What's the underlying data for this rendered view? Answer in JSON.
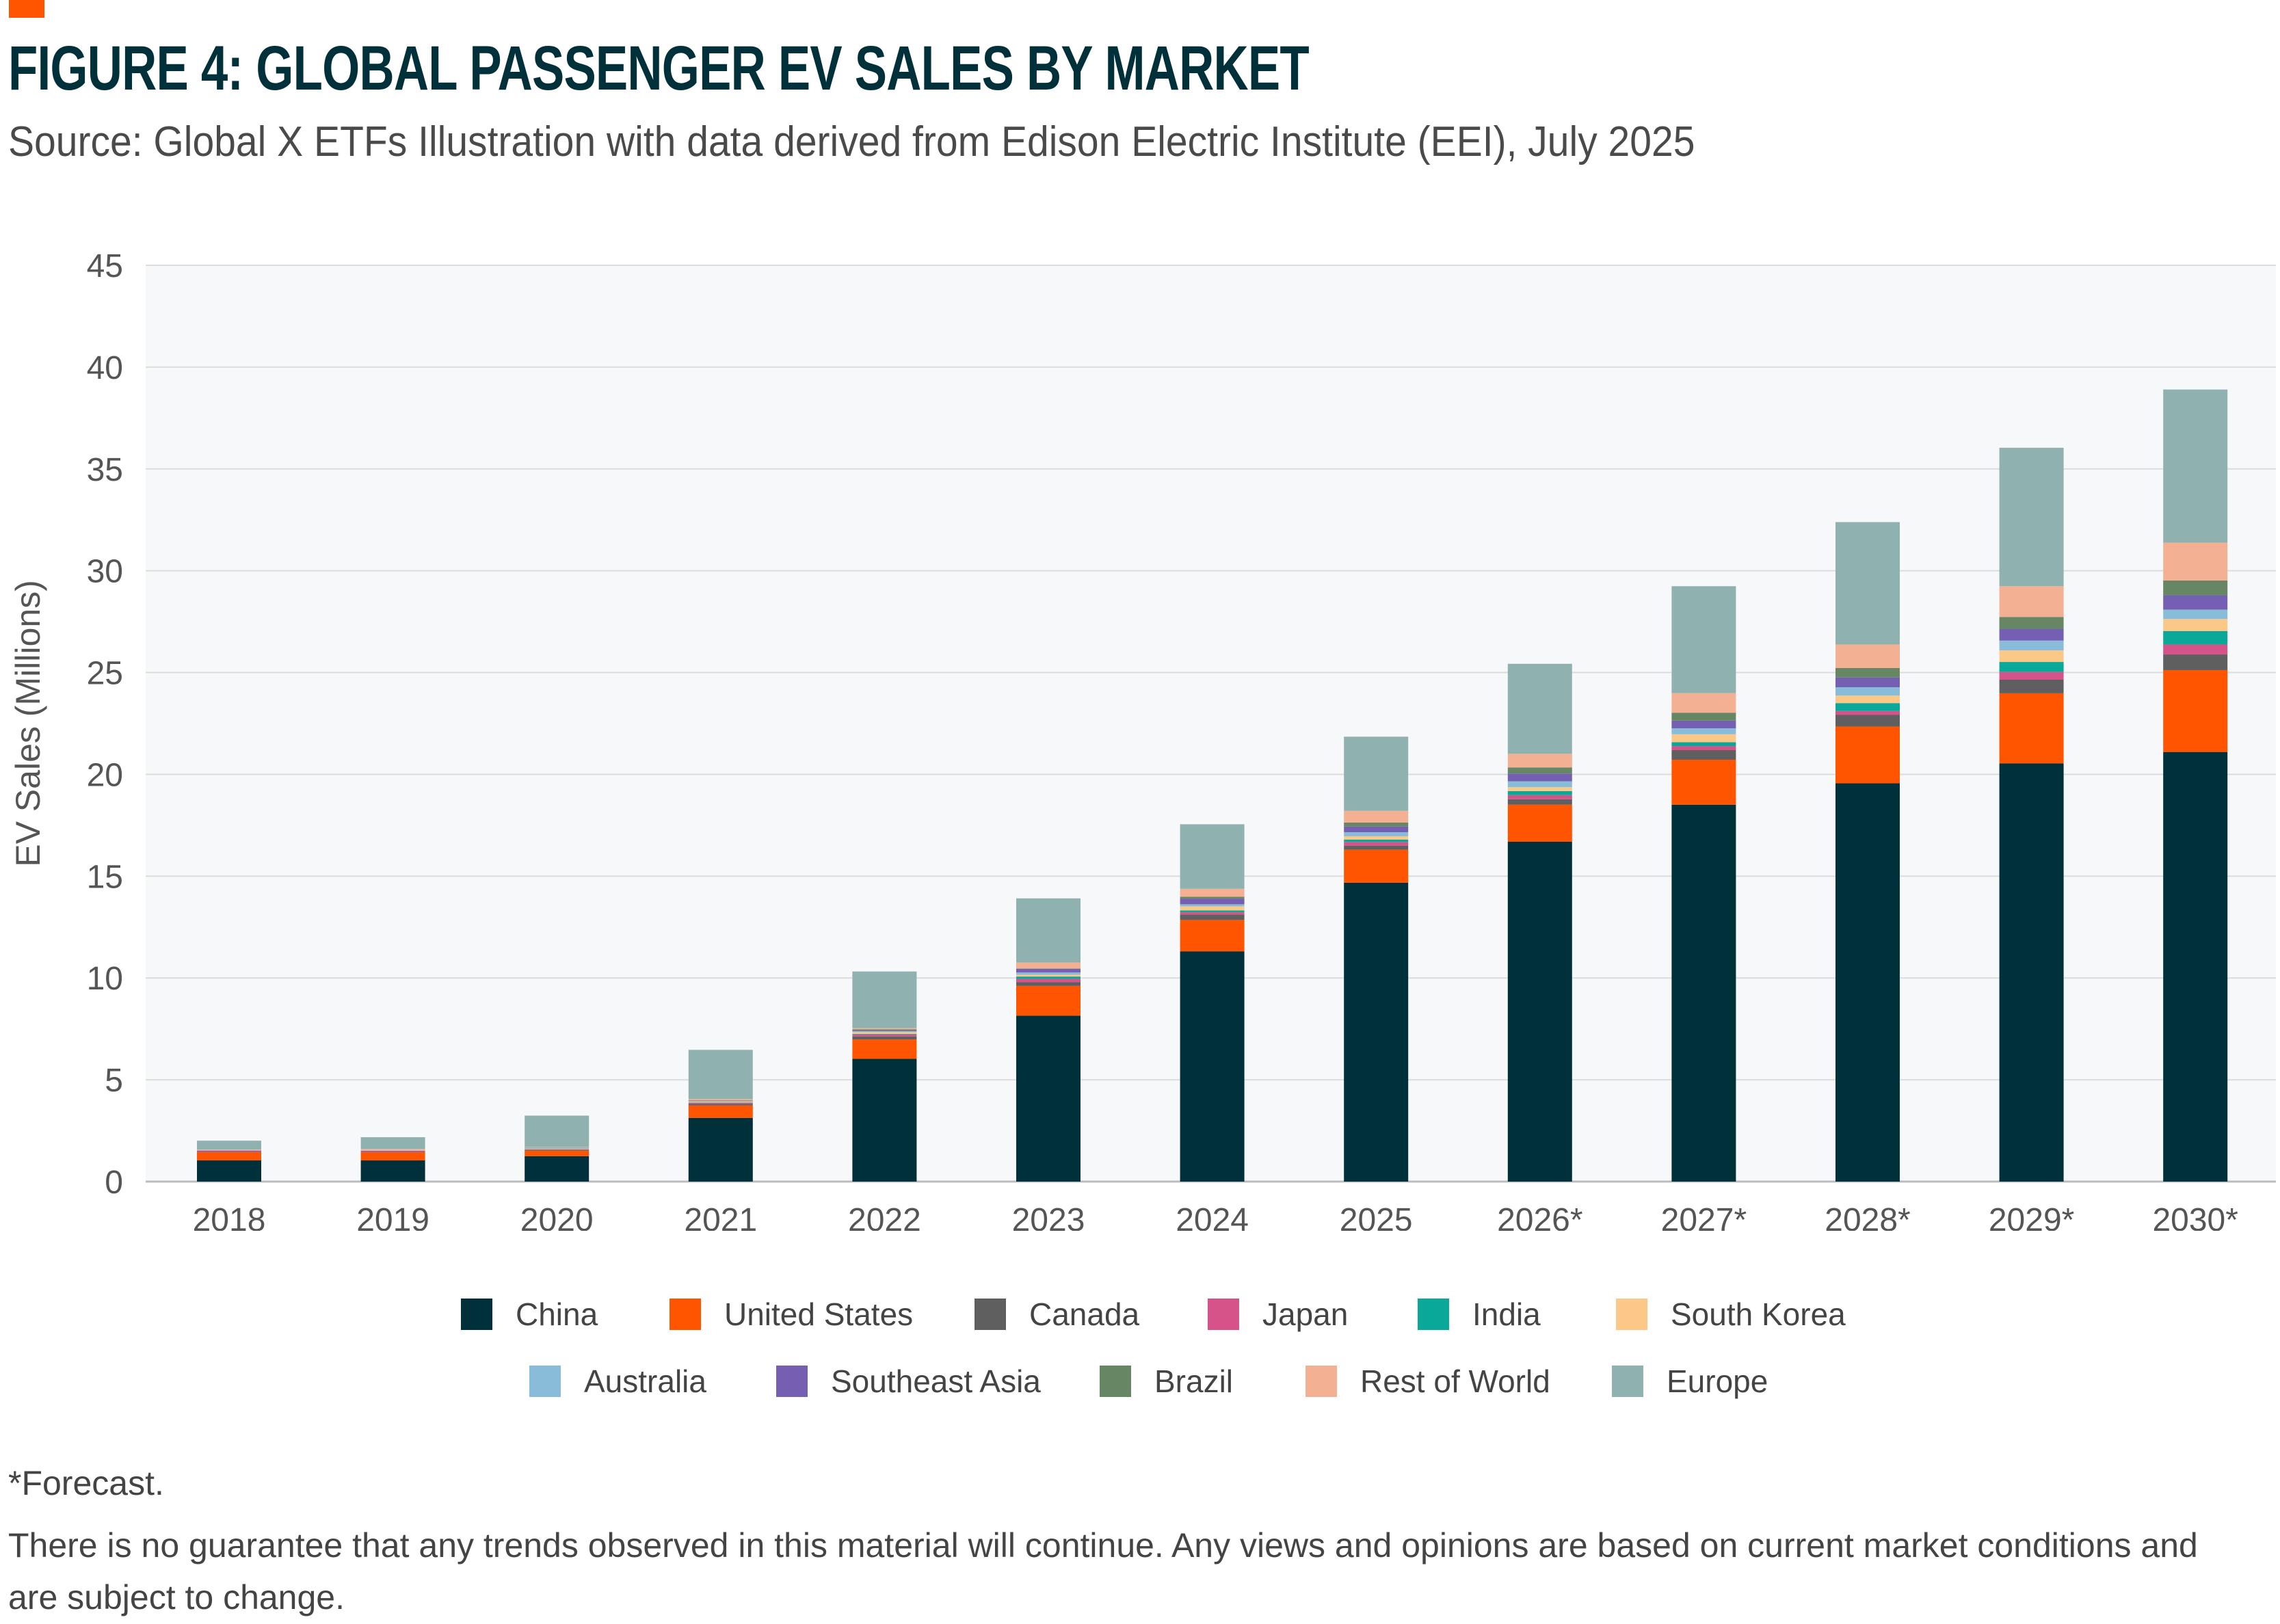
{
  "header": {
    "title": "FIGURE 4: GLOBAL PASSENGER EV SALES BY MARKET",
    "subtitle": "Source: Global X ETFs Illustration with data derived from Edison Electric Institute (EEI), July 2025",
    "accent_color": "#ff5400"
  },
  "chart_data": {
    "type": "bar",
    "stacked": true,
    "title": "",
    "xlabel": "",
    "ylabel": "EV Sales (Millions)",
    "ylim": [
      0,
      45
    ],
    "yticks": [
      0,
      5,
      10,
      15,
      20,
      25,
      30,
      35,
      40,
      45
    ],
    "grid": true,
    "legend_position": "bottom",
    "categories": [
      "2018",
      "2019",
      "2020",
      "2021",
      "2022",
      "2023",
      "2024",
      "2025",
      "2026*",
      "2027*",
      "2028*",
      "2029*",
      "2030*"
    ],
    "series": [
      {
        "name": "China",
        "color": "#00303a",
        "values": [
          1.04,
          1.04,
          1.25,
          3.13,
          6.03,
          8.15,
          11.31,
          14.68,
          16.69,
          18.51,
          19.56,
          20.54,
          21.1
        ]
      },
      {
        "name": "United States",
        "color": "#ff5400",
        "values": [
          0.4,
          0.4,
          0.27,
          0.61,
          0.95,
          1.46,
          1.54,
          1.62,
          1.82,
          2.21,
          2.79,
          3.44,
          4.02
        ]
      },
      {
        "name": "Canada",
        "color": "#5f5f5f",
        "values": [
          0.02,
          0.02,
          0.05,
          0.07,
          0.15,
          0.18,
          0.27,
          0.2,
          0.27,
          0.47,
          0.57,
          0.67,
          0.77
        ]
      },
      {
        "name": "Japan",
        "color": "#d6538a",
        "values": [
          0.07,
          0.06,
          0.02,
          0.06,
          0.1,
          0.17,
          0.11,
          0.18,
          0.2,
          0.2,
          0.19,
          0.38,
          0.49
        ]
      },
      {
        "name": "India",
        "color": "#0aa898",
        "values": [
          0.0,
          0.0,
          0.0,
          0.01,
          0.03,
          0.11,
          0.09,
          0.12,
          0.2,
          0.19,
          0.39,
          0.49,
          0.66
        ]
      },
      {
        "name": "South Korea",
        "color": "#fbc887",
        "values": [
          0.01,
          0.02,
          0.02,
          0.05,
          0.08,
          0.09,
          0.2,
          0.16,
          0.19,
          0.39,
          0.37,
          0.57,
          0.59
        ]
      },
      {
        "name": "Australia",
        "color": "#88bcd8",
        "values": [
          0.01,
          0.01,
          0.05,
          0.03,
          0.05,
          0.11,
          0.1,
          0.2,
          0.29,
          0.29,
          0.41,
          0.48,
          0.46
        ]
      },
      {
        "name": "Southeast Asia",
        "color": "#745fb2",
        "values": [
          0.0,
          0.0,
          0.0,
          0.01,
          0.03,
          0.18,
          0.28,
          0.28,
          0.38,
          0.38,
          0.48,
          0.58,
          0.71
        ]
      },
      {
        "name": "Brazil",
        "color": "#678664",
        "values": [
          0.0,
          0.0,
          0.01,
          0.01,
          0.06,
          0.02,
          0.09,
          0.19,
          0.3,
          0.39,
          0.46,
          0.58,
          0.72
        ]
      },
      {
        "name": "Rest of World",
        "color": "#f4b092",
        "values": [
          0.02,
          0.05,
          0.03,
          0.07,
          0.06,
          0.29,
          0.39,
          0.58,
          0.67,
          0.96,
          1.16,
          1.51,
          1.86
        ]
      },
      {
        "name": "Europe",
        "color": "#8fb2b1",
        "values": [
          0.44,
          0.58,
          1.54,
          2.42,
          2.78,
          3.15,
          3.17,
          3.64,
          4.42,
          5.25,
          6.01,
          6.8,
          7.52
        ]
      }
    ]
  },
  "footnotes": {
    "forecast": "*Forecast.",
    "disclaimer": "There is no guarantee that any trends observed in this material will continue. Any views and opinions are based on current market conditions and are subject to change."
  }
}
